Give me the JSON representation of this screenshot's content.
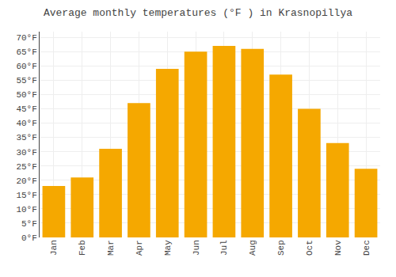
{
  "chart_data": {
    "type": "bar",
    "title": "Average monthly temperatures (°F ) in Krasnopillya",
    "categories": [
      "Jan",
      "Feb",
      "Mar",
      "Apr",
      "May",
      "Jun",
      "Jul",
      "Aug",
      "Sep",
      "Oct",
      "Nov",
      "Dec"
    ],
    "values": [
      18,
      21,
      31,
      47,
      59,
      65,
      67,
      66,
      57,
      45,
      33,
      24
    ],
    "color": "#F5A800",
    "ylim": [
      0,
      72
    ],
    "yticks": [
      {
        "value": 0,
        "label": "0°F"
      },
      {
        "value": 5,
        "label": "5°F"
      },
      {
        "value": 10,
        "label": "10°F"
      },
      {
        "value": 15,
        "label": "15°F"
      },
      {
        "value": 20,
        "label": "20°F"
      },
      {
        "value": 25,
        "label": "25°F"
      },
      {
        "value": 30,
        "label": "30°F"
      },
      {
        "value": 35,
        "label": "35°F"
      },
      {
        "value": 40,
        "label": "40°F"
      },
      {
        "value": 45,
        "label": "45°F"
      },
      {
        "value": 50,
        "label": "50°F"
      },
      {
        "value": 55,
        "label": "55°F"
      },
      {
        "value": 60,
        "label": "60°F"
      },
      {
        "value": 65,
        "label": "65°F"
      },
      {
        "value": 70,
        "label": "70°F"
      }
    ],
    "grid": true
  }
}
